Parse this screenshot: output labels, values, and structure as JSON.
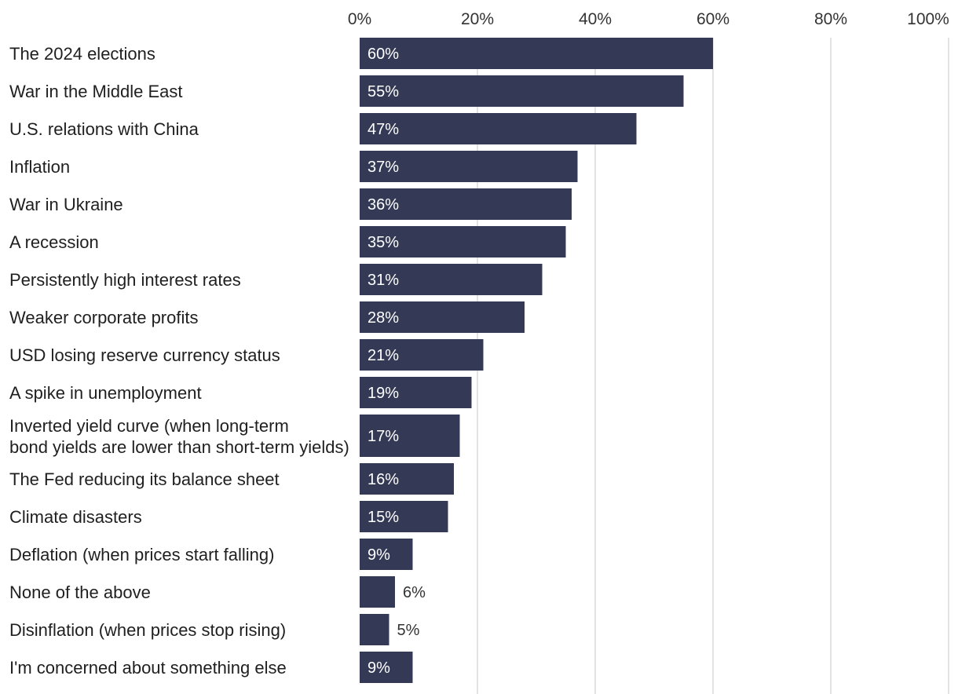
{
  "chart_data": {
    "type": "bar",
    "orientation": "horizontal",
    "title": "",
    "xlabel": "",
    "ylabel": "",
    "xlim": [
      0,
      100
    ],
    "ticks": [
      "0%",
      "20%",
      "40%",
      "60%",
      "80%",
      "100%"
    ],
    "tick_values": [
      0,
      20,
      40,
      60,
      80,
      100
    ],
    "grid": true,
    "bar_color": "#343a56",
    "categories": [
      "The 2024 elections",
      "War in the Middle East",
      "U.S. relations with China",
      "Inflation",
      "War in Ukraine",
      "A recession",
      "Persistently high interest rates",
      "Weaker corporate profits",
      "USD losing reserve currency status",
      "A spike in unemployment",
      "Inverted yield curve (when long-term bond yields are lower than short-term yields)",
      "The Fed reducing its balance sheet",
      "Climate disasters",
      "Deflation (when prices start falling)",
      "None of the above",
      "Disinflation (when prices stop rising)",
      "I'm concerned about something else"
    ],
    "values": [
      60,
      55,
      47,
      37,
      36,
      35,
      31,
      28,
      21,
      19,
      17,
      16,
      15,
      9,
      6,
      5,
      9
    ],
    "value_labels": [
      "60%",
      "55%",
      "47%",
      "37%",
      "36%",
      "35%",
      "31%",
      "28%",
      "21%",
      "19%",
      "17%",
      "16%",
      "15%",
      "9%",
      "6%",
      "5%",
      "9%"
    ]
  }
}
